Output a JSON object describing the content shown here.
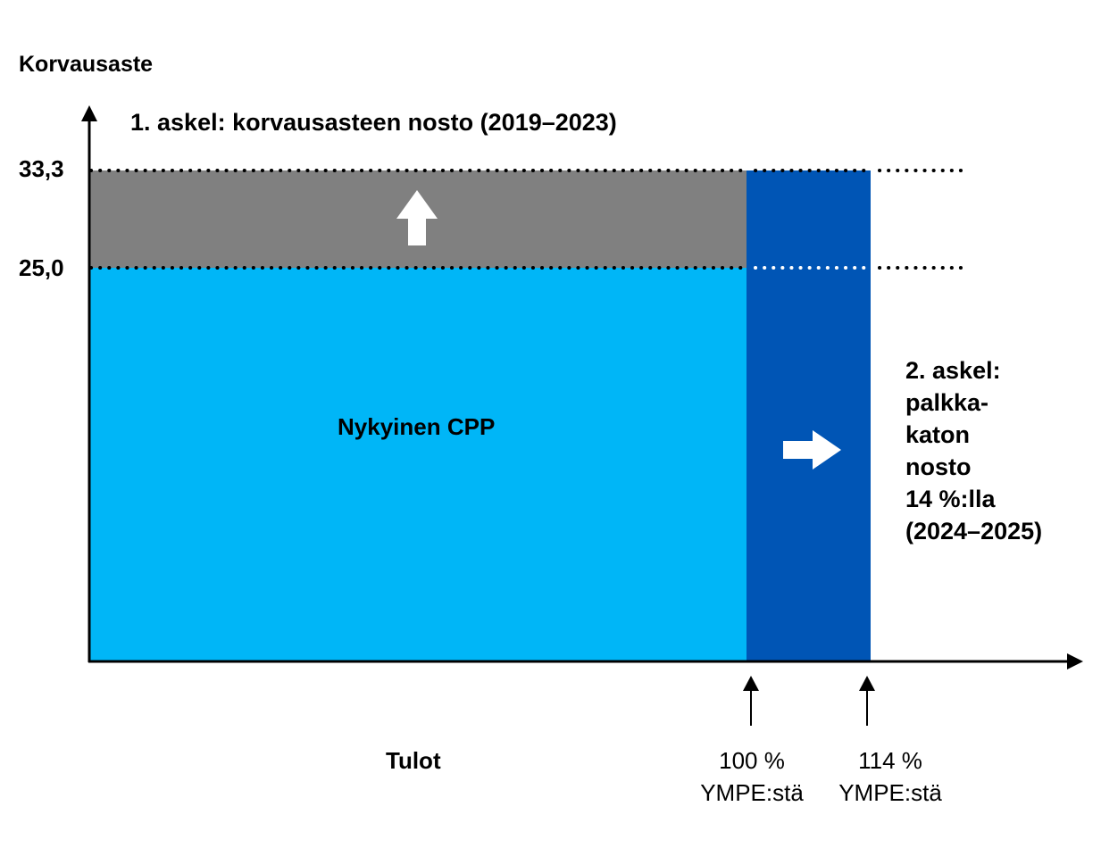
{
  "y_axis": {
    "title": "Korvausaste",
    "ticks": [
      "33,3",
      "25,0"
    ]
  },
  "x_axis": {
    "title": "Tulot",
    "ticks": [
      {
        "value": "100 %",
        "unit": "YMPE:stä"
      },
      {
        "value": "114 %",
        "unit": "YMPE:stä"
      }
    ]
  },
  "regions": {
    "current": "Nykyinen CPP"
  },
  "steps": {
    "step1": "1. askel: korvausasteen nosto (2019–2023)",
    "step2": [
      "2. askel:",
      "palkka-",
      "katon",
      "nosto",
      "14 %:lla",
      "(2024–2025)"
    ]
  },
  "colors": {
    "current_cpp": "#00b6f7",
    "rate_increase": "#808080",
    "ceiling_increase": "#0055b5",
    "axis": "#000000",
    "arrow_icons": "#ffffff"
  },
  "icons": {
    "up_arrow": "up-arrow-icon",
    "right_arrow": "right-arrow-icon"
  }
}
